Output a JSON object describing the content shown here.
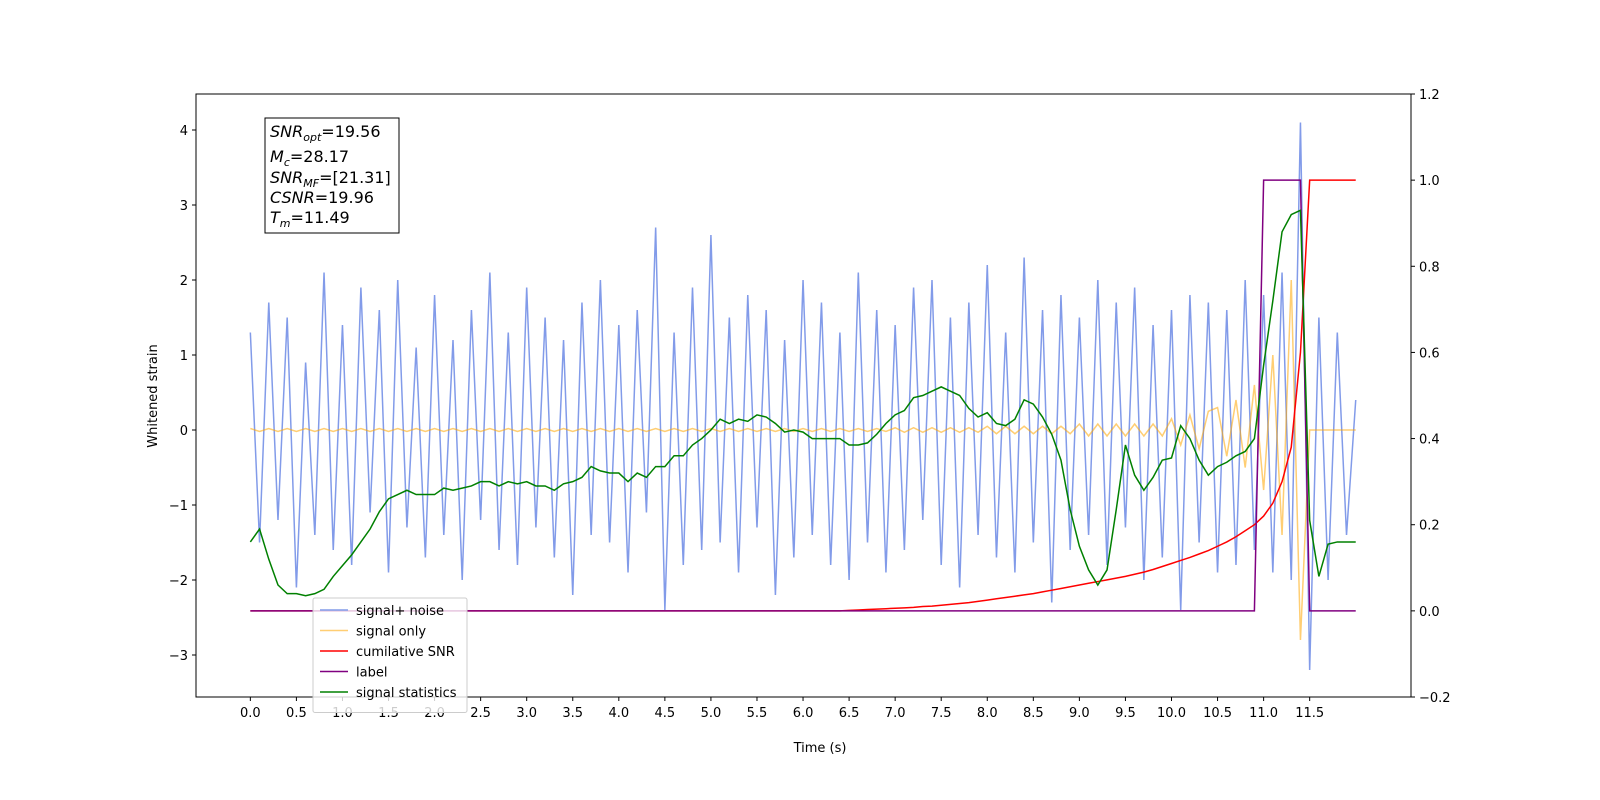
{
  "chart_data": {
    "type": "line",
    "xlabel": "Time (s)",
    "ylabel": "Whitened strain",
    "xlim": [
      -0.59,
      12.6
    ],
    "ylim": [
      -3.56,
      4.48
    ],
    "y2lim": [
      -0.2,
      1.2
    ],
    "xticks": [
      {
        "value": 0,
        "label": "0.0"
      },
      0.5,
      {
        "value": 1,
        "label": "1.0"
      },
      1.5,
      {
        "value": 2,
        "label": "2.0"
      },
      2.5,
      {
        "value": 3,
        "label": "3.0"
      },
      3.5,
      {
        "value": 4,
        "label": "4.0"
      },
      4.5,
      {
        "value": 5,
        "label": "5.0"
      },
      5.5,
      {
        "value": 6,
        "label": "6.0"
      },
      6.5,
      {
        "value": 7,
        "label": "7.0"
      },
      7.5,
      {
        "value": 8,
        "label": "8.0"
      },
      8.5,
      {
        "value": 9,
        "label": "9.0"
      },
      9.5,
      {
        "value": 10,
        "label": "10.0"
      },
      10.5,
      {
        "value": 11,
        "label": "11.0"
      },
      11.5
    ],
    "yticks": [
      {
        "value": -3,
        "label": "−3"
      },
      {
        "value": -2,
        "label": "−2"
      },
      {
        "value": -1,
        "label": "−1"
      },
      0,
      1,
      2,
      3,
      4
    ],
    "y2ticks": [
      {
        "value": -0.2,
        "label": "−0.2"
      },
      {
        "value": 0,
        "label": "0.0"
      },
      0.2,
      0.4,
      0.6,
      0.8,
      {
        "value": 1,
        "label": "1.0"
      },
      1.2
    ],
    "legend": "lower left",
    "annotation": [
      {
        "main": "SNR",
        "sub": "opt",
        "rest": "=19.56"
      },
      {
        "main": "M",
        "sub": "c",
        "rest": "=28.17"
      },
      {
        "main": "SNR",
        "sub": "MF",
        "rest": "=[21.31]"
      },
      {
        "main": "CSNR",
        "rest": "=19.96"
      },
      {
        "main": "T",
        "sub": "m",
        "rest": "=11.49"
      }
    ],
    "x": [
      0,
      0.1,
      0.2,
      0.3,
      0.4,
      0.5,
      0.6,
      0.7,
      0.8,
      0.9,
      1,
      1.1,
      1.2,
      1.3,
      1.4,
      1.5,
      1.6,
      1.7,
      1.8,
      1.9,
      2,
      2.1,
      2.2,
      2.3,
      2.4,
      2.5,
      2.6,
      2.7,
      2.8,
      2.9,
      3,
      3.1,
      3.2,
      3.3,
      3.4,
      3.5,
      3.6,
      3.7,
      3.8,
      3.9,
      4,
      4.1,
      4.2,
      4.3,
      4.4,
      4.5,
      4.6,
      4.7,
      4.8,
      4.9,
      5,
      5.1,
      5.2,
      5.3,
      5.4,
      5.5,
      5.6,
      5.7,
      5.8,
      5.9,
      6,
      6.1,
      6.2,
      6.3,
      6.4,
      6.5,
      6.6,
      6.7,
      6.8,
      6.9,
      7,
      7.1,
      7.2,
      7.3,
      7.4,
      7.5,
      7.6,
      7.7,
      7.8,
      7.9,
      8,
      8.1,
      8.2,
      8.3,
      8.4,
      8.5,
      8.6,
      8.7,
      8.8,
      8.9,
      9,
      9.1,
      9.2,
      9.3,
      9.4,
      9.5,
      9.6,
      9.7,
      9.8,
      9.9,
      10,
      10.1,
      10.2,
      10.3,
      10.4,
      10.5,
      10.6,
      10.7,
      10.8,
      10.9,
      11,
      11.1,
      11.2,
      11.3,
      11.4,
      11.5,
      11.6,
      11.7,
      11.8,
      11.9,
      12
    ],
    "series": [
      {
        "name": "signal+ noise",
        "color": "#7b96e8",
        "values": [
          1.3,
          -1.5,
          1.7,
          -1.2,
          1.5,
          -2.1,
          0.9,
          -1.4,
          2.1,
          -1.6,
          1.4,
          -1.8,
          1.9,
          -1.1,
          1.6,
          -1.9,
          2.0,
          -1.3,
          1.1,
          -1.7,
          1.8,
          -1.4,
          1.2,
          -2.0,
          1.6,
          -1.2,
          2.1,
          -1.6,
          1.3,
          -1.8,
          1.9,
          -1.3,
          1.5,
          -1.7,
          1.2,
          -2.2,
          1.7,
          -1.4,
          2.0,
          -1.5,
          1.4,
          -1.9,
          1.6,
          -1.1,
          2.7,
          -2.4,
          1.3,
          -1.8,
          1.9,
          -1.6,
          2.6,
          -1.5,
          1.5,
          -1.9,
          1.8,
          -1.3,
          1.6,
          -2.2,
          1.2,
          -1.7,
          2.0,
          -1.4,
          1.7,
          -1.8,
          1.3,
          -2.0,
          2.1,
          -1.5,
          1.6,
          -1.9,
          1.4,
          -1.6,
          1.9,
          -1.2,
          2.0,
          -1.8,
          1.5,
          -2.1,
          1.7,
          -1.4,
          2.2,
          -1.7,
          1.3,
          -1.9,
          2.3,
          -1.5,
          1.6,
          -2.3,
          1.8,
          -1.6,
          1.5,
          -1.4,
          2.0,
          -1.8,
          1.7,
          -1.3,
          1.9,
          -2.0,
          1.4,
          -1.7,
          1.6,
          -2.4,
          1.8,
          -1.5,
          1.7,
          -1.9,
          1.6,
          -1.8,
          2.0,
          -1.6,
          1.8,
          -1.9,
          2.1,
          -2.0,
          4.1,
          -3.2,
          1.5,
          -2.0,
          1.3,
          -1.4,
          0.4
        ]
      },
      {
        "name": "signal only",
        "color": "orange",
        "values": [
          0.02,
          -0.02,
          0.02,
          -0.02,
          0.02,
          -0.02,
          0.02,
          -0.02,
          0.02,
          -0.02,
          0.02,
          -0.02,
          0.02,
          -0.02,
          0.02,
          -0.02,
          0.02,
          -0.02,
          0.02,
          -0.02,
          0.02,
          -0.02,
          0.02,
          -0.02,
          0.02,
          -0.02,
          0.02,
          -0.02,
          0.02,
          -0.02,
          0.02,
          -0.02,
          0.02,
          -0.02,
          0.02,
          -0.02,
          0.02,
          -0.02,
          0.02,
          -0.02,
          0.02,
          -0.02,
          0.02,
          -0.02,
          0.02,
          -0.02,
          0.02,
          -0.02,
          0.02,
          -0.02,
          0.02,
          -0.02,
          0.02,
          -0.02,
          0.02,
          -0.02,
          0.02,
          -0.02,
          0.02,
          -0.02,
          0.02,
          -0.02,
          0.02,
          -0.02,
          0.02,
          -0.02,
          0.02,
          -0.02,
          0.02,
          -0.02,
          0.03,
          -0.03,
          0.03,
          -0.03,
          0.03,
          -0.03,
          0.03,
          -0.03,
          0.03,
          -0.03,
          0.05,
          -0.05,
          0.05,
          -0.05,
          0.05,
          -0.05,
          0.05,
          -0.05,
          0.05,
          -0.05,
          0.08,
          -0.08,
          0.08,
          -0.08,
          0.08,
          -0.08,
          0.08,
          -0.08,
          0.08,
          -0.08,
          0.15,
          -0.2,
          0.2,
          -0.25,
          0.25,
          0.3,
          -0.35,
          0.4,
          -0.5,
          0.6,
          -0.8,
          1.0,
          -1.4,
          2.0,
          -2.8,
          0,
          0,
          0,
          0,
          0,
          0
        ]
      },
      {
        "name": "cumilative SNR",
        "color": "red",
        "axis": "y2",
        "values": [
          0,
          0,
          0,
          0,
          0,
          0,
          0,
          0,
          0,
          0,
          0,
          0,
          0,
          0,
          0,
          0,
          0,
          0,
          0,
          0,
          0,
          0,
          0,
          0,
          0,
          0,
          0,
          0,
          0,
          0,
          0,
          0,
          0,
          0,
          0,
          0,
          0,
          0,
          0,
          0,
          0,
          0,
          0,
          0,
          0,
          0,
          0,
          0,
          0,
          0,
          0,
          0,
          0,
          0,
          0,
          0,
          0,
          0,
          0,
          0,
          0,
          0,
          0,
          0,
          0,
          0.001,
          0.002,
          0.003,
          0.004,
          0.005,
          0.006,
          0.007,
          0.008,
          0.01,
          0.011,
          0.013,
          0.015,
          0.017,
          0.019,
          0.022,
          0.025,
          0.028,
          0.031,
          0.034,
          0.037,
          0.04,
          0.044,
          0.048,
          0.052,
          0.056,
          0.06,
          0.064,
          0.068,
          0.072,
          0.076,
          0.08,
          0.085,
          0.09,
          0.096,
          0.103,
          0.11,
          0.117,
          0.124,
          0.132,
          0.14,
          0.15,
          0.16,
          0.172,
          0.186,
          0.2,
          0.22,
          0.25,
          0.3,
          0.38,
          0.6,
          1.0,
          1.0,
          1.0,
          1.0,
          1.0,
          1.0
        ]
      },
      {
        "name": "label",
        "color": "purple",
        "axis": "y2",
        "values": [
          0,
          0,
          0,
          0,
          0,
          0,
          0,
          0,
          0,
          0,
          0,
          0,
          0,
          0,
          0,
          0,
          0,
          0,
          0,
          0,
          0,
          0,
          0,
          0,
          0,
          0,
          0,
          0,
          0,
          0,
          0,
          0,
          0,
          0,
          0,
          0,
          0,
          0,
          0,
          0,
          0,
          0,
          0,
          0,
          0,
          0,
          0,
          0,
          0,
          0,
          0,
          0,
          0,
          0,
          0,
          0,
          0,
          0,
          0,
          0,
          0,
          0,
          0,
          0,
          0,
          0,
          0,
          0,
          0,
          0,
          0,
          0,
          0,
          0,
          0,
          0,
          0,
          0,
          0,
          0,
          0,
          0,
          0,
          0,
          0,
          0,
          0,
          0,
          0,
          0,
          0,
          0,
          0,
          0,
          0,
          0,
          0,
          0,
          0,
          0,
          0,
          0,
          0,
          0,
          0,
          0,
          0,
          0,
          0,
          0,
          1,
          1,
          1,
          1,
          1,
          0,
          0,
          0,
          0,
          0,
          0
        ]
      },
      {
        "name": "signal statistics",
        "color": "green",
        "axis": "y2",
        "values": [
          0.16,
          0.19,
          0.12,
          0.06,
          0.04,
          0.04,
          0.035,
          0.04,
          0.05,
          0.08,
          0.105,
          0.13,
          0.16,
          0.19,
          0.23,
          0.26,
          0.27,
          0.28,
          0.27,
          0.27,
          0.27,
          0.285,
          0.28,
          0.285,
          0.29,
          0.3,
          0.3,
          0.29,
          0.3,
          0.295,
          0.3,
          0.29,
          0.29,
          0.28,
          0.295,
          0.3,
          0.31,
          0.335,
          0.325,
          0.32,
          0.32,
          0.3,
          0.32,
          0.31,
          0.335,
          0.335,
          0.36,
          0.36,
          0.385,
          0.4,
          0.42,
          0.445,
          0.435,
          0.445,
          0.44,
          0.455,
          0.45,
          0.435,
          0.415,
          0.42,
          0.415,
          0.4,
          0.4,
          0.4,
          0.4,
          0.385,
          0.385,
          0.39,
          0.41,
          0.435,
          0.455,
          0.465,
          0.495,
          0.5,
          0.51,
          0.52,
          0.51,
          0.5,
          0.47,
          0.45,
          0.46,
          0.435,
          0.43,
          0.445,
          0.49,
          0.48,
          0.45,
          0.41,
          0.35,
          0.235,
          0.15,
          0.095,
          0.06,
          0.095,
          0.235,
          0.385,
          0.315,
          0.28,
          0.31,
          0.35,
          0.355,
          0.43,
          0.4,
          0.35,
          0.315,
          0.335,
          0.345,
          0.36,
          0.37,
          0.4,
          0.57,
          0.72,
          0.88,
          0.92,
          0.93,
          0.21,
          0.08,
          0.155,
          0.16,
          0.16,
          0.16
        ]
      }
    ]
  }
}
